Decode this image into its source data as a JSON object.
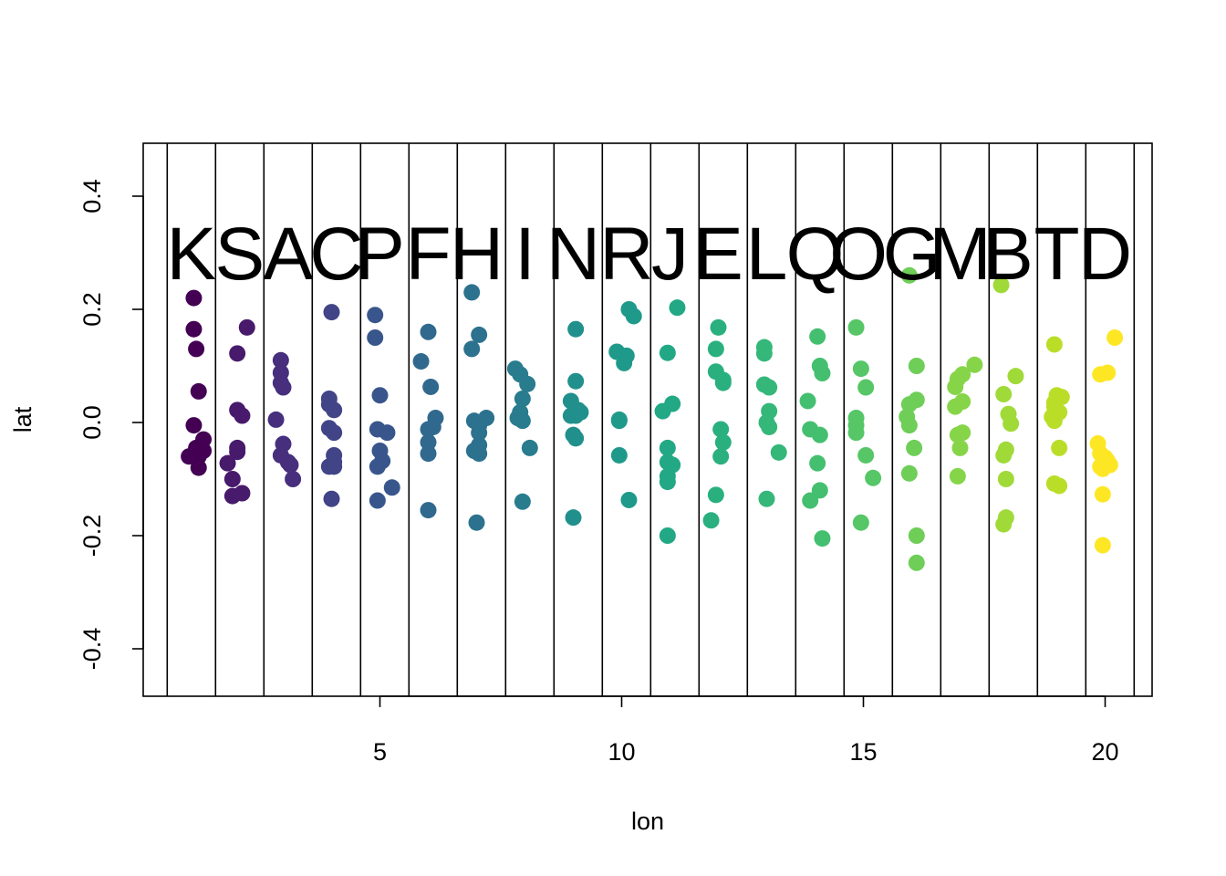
{
  "chart_data": {
    "type": "scatter",
    "xlabel": "lon",
    "ylabel": "lat",
    "xlim": [
      0.2,
      21.0
    ],
    "ylim": [
      -0.48,
      0.48
    ],
    "x_ticks": [
      5,
      10,
      15,
      20
    ],
    "y_ticks": [
      -0.4,
      -0.2,
      0.0,
      0.2,
      0.4
    ],
    "y_tick_labels": [
      "-0.4",
      "-0.2",
      "0.0",
      "0.2",
      "0.4"
    ],
    "vertical_lines": [
      0.6,
      1.6,
      2.6,
      3.6,
      4.6,
      5.6,
      6.6,
      7.6,
      8.6,
      9.6,
      10.6,
      11.6,
      12.6,
      13.6,
      14.6,
      15.6,
      16.6,
      17.6,
      18.6,
      19.6,
      20.6
    ],
    "group_label_y": 0.3,
    "groups": [
      {
        "label": "K",
        "x_center": 1.1,
        "color": "#440154",
        "points": [
          [
            1.15,
            0.22
          ],
          [
            1.15,
            0.165
          ],
          [
            1.2,
            0.13
          ],
          [
            1.25,
            0.055
          ],
          [
            1.15,
            -0.005
          ],
          [
            1.35,
            -0.03
          ],
          [
            1.2,
            -0.045
          ],
          [
            1.35,
            -0.05
          ],
          [
            1.05,
            -0.06
          ],
          [
            1.25,
            -0.06
          ],
          [
            1.25,
            -0.08
          ]
        ]
      },
      {
        "label": "S",
        "x_center": 2.1,
        "color": "#481a6c",
        "points": [
          [
            2.25,
            0.168
          ],
          [
            2.05,
            0.122
          ],
          [
            2.05,
            0.022
          ],
          [
            2.15,
            0.012
          ],
          [
            2.05,
            -0.045
          ],
          [
            2.05,
            -0.052
          ],
          [
            1.85,
            -0.072
          ],
          [
            1.95,
            -0.1
          ],
          [
            2.15,
            -0.125
          ],
          [
            1.95,
            -0.13
          ]
        ]
      },
      {
        "label": "A",
        "x_center": 3.1,
        "color": "#472f7d",
        "points": [
          [
            2.95,
            0.11
          ],
          [
            2.95,
            0.088
          ],
          [
            2.95,
            0.07
          ],
          [
            3.0,
            0.062
          ],
          [
            2.85,
            0.005
          ],
          [
            3.0,
            -0.038
          ],
          [
            2.95,
            -0.058
          ],
          [
            3.1,
            -0.07
          ],
          [
            3.15,
            -0.075
          ],
          [
            3.2,
            -0.1
          ]
        ]
      },
      {
        "label": "C",
        "x_center": 4.1,
        "color": "#414487",
        "points": [
          [
            4.0,
            0.195
          ],
          [
            3.95,
            0.042
          ],
          [
            3.95,
            0.032
          ],
          [
            4.05,
            0.022
          ],
          [
            3.95,
            -0.01
          ],
          [
            4.05,
            -0.018
          ],
          [
            4.05,
            -0.058
          ],
          [
            4.05,
            -0.07
          ],
          [
            3.95,
            -0.078
          ],
          [
            4.05,
            -0.078
          ],
          [
            4.0,
            -0.135
          ]
        ]
      },
      {
        "label": "P",
        "x_center": 5.0,
        "color": "#39568c",
        "points": [
          [
            4.9,
            0.19
          ],
          [
            4.9,
            0.15
          ],
          [
            5.0,
            0.048
          ],
          [
            4.95,
            -0.012
          ],
          [
            5.15,
            -0.018
          ],
          [
            5.0,
            -0.05
          ],
          [
            5.05,
            -0.068
          ],
          [
            4.95,
            -0.078
          ],
          [
            5.25,
            -0.115
          ],
          [
            4.95,
            -0.138
          ]
        ]
      },
      {
        "label": "F",
        "x_center": 6.0,
        "color": "#31688e",
        "points": [
          [
            6.0,
            0.16
          ],
          [
            5.85,
            0.108
          ],
          [
            6.05,
            0.063
          ],
          [
            6.15,
            0.008
          ],
          [
            6.1,
            -0.008
          ],
          [
            6.0,
            -0.012
          ],
          [
            6.0,
            -0.035
          ],
          [
            6.0,
            -0.055
          ],
          [
            6.0,
            -0.155
          ]
        ]
      },
      {
        "label": "H",
        "x_center": 7.0,
        "color": "#2c728e",
        "points": [
          [
            6.9,
            0.23
          ],
          [
            7.05,
            0.155
          ],
          [
            6.9,
            0.13
          ],
          [
            7.2,
            0.008
          ],
          [
            6.95,
            0.003
          ],
          [
            7.05,
            -0.005
          ],
          [
            7.05,
            -0.018
          ],
          [
            7.05,
            -0.04
          ],
          [
            6.95,
            -0.05
          ],
          [
            7.05,
            -0.055
          ],
          [
            7.0,
            -0.177
          ]
        ]
      },
      {
        "label": "I",
        "x_center": 8.0,
        "color": "#287c8e",
        "points": [
          [
            7.8,
            0.095
          ],
          [
            7.9,
            0.085
          ],
          [
            8.05,
            0.068
          ],
          [
            7.95,
            0.042
          ],
          [
            7.9,
            0.018
          ],
          [
            7.85,
            0.008
          ],
          [
            7.95,
            0.003
          ],
          [
            8.1,
            -0.045
          ],
          [
            7.95,
            -0.14
          ]
        ]
      },
      {
        "label": "N",
        "x_center": 9.0,
        "color": "#21908c",
        "points": [
          [
            9.05,
            0.165
          ],
          [
            9.05,
            0.073
          ],
          [
            8.95,
            0.038
          ],
          [
            9.1,
            0.022
          ],
          [
            9.15,
            0.018
          ],
          [
            9.05,
            0.012
          ],
          [
            8.95,
            0.012
          ],
          [
            9.0,
            -0.022
          ],
          [
            9.05,
            -0.028
          ],
          [
            9.0,
            -0.168
          ]
        ]
      },
      {
        "label": "R",
        "x_center": 10.1,
        "color": "#1f9a8a",
        "points": [
          [
            10.15,
            0.2
          ],
          [
            10.25,
            0.188
          ],
          [
            9.9,
            0.125
          ],
          [
            10.1,
            0.118
          ],
          [
            10.05,
            0.105
          ],
          [
            9.95,
            0.005
          ],
          [
            9.95,
            0.003
          ],
          [
            9.95,
            -0.058
          ],
          [
            10.15,
            -0.137
          ]
        ]
      },
      {
        "label": "J",
        "x_center": 11.0,
        "color": "#22a884",
        "points": [
          [
            11.15,
            0.203
          ],
          [
            10.95,
            0.123
          ],
          [
            11.05,
            0.033
          ],
          [
            10.85,
            0.02
          ],
          [
            10.95,
            -0.045
          ],
          [
            10.95,
            -0.07
          ],
          [
            11.05,
            -0.075
          ],
          [
            10.95,
            -0.095
          ],
          [
            10.95,
            -0.105
          ],
          [
            10.95,
            -0.2
          ]
        ]
      },
      {
        "label": "E",
        "x_center": 12.0,
        "color": "#2ab07f",
        "points": [
          [
            12.0,
            0.168
          ],
          [
            11.95,
            0.13
          ],
          [
            11.95,
            0.09
          ],
          [
            12.1,
            0.075
          ],
          [
            12.1,
            0.07
          ],
          [
            12.05,
            -0.012
          ],
          [
            12.1,
            -0.035
          ],
          [
            12.05,
            -0.06
          ],
          [
            11.95,
            -0.128
          ],
          [
            11.85,
            -0.173
          ]
        ]
      },
      {
        "label": "L",
        "x_center": 13.0,
        "color": "#35b779",
        "points": [
          [
            12.95,
            0.133
          ],
          [
            12.95,
            0.122
          ],
          [
            12.95,
            0.067
          ],
          [
            13.05,
            0.062
          ],
          [
            13.05,
            0.02
          ],
          [
            13.0,
            0.0
          ],
          [
            13.05,
            -0.008
          ],
          [
            13.25,
            -0.053
          ],
          [
            13.0,
            -0.135
          ]
        ]
      },
      {
        "label": "Q",
        "x_center": 14.0,
        "color": "#44bf70",
        "points": [
          [
            14.05,
            0.152
          ],
          [
            14.1,
            0.1
          ],
          [
            14.15,
            0.087
          ],
          [
            13.85,
            0.038
          ],
          [
            13.9,
            -0.012
          ],
          [
            14.1,
            -0.022
          ],
          [
            14.05,
            -0.072
          ],
          [
            14.1,
            -0.12
          ],
          [
            13.9,
            -0.138
          ],
          [
            14.15,
            -0.205
          ]
        ]
      },
      {
        "label": "O",
        "x_center": 14.9,
        "color": "#56c667",
        "points": [
          [
            14.85,
            0.168
          ],
          [
            14.95,
            0.095
          ],
          [
            15.05,
            0.062
          ],
          [
            14.85,
            0.008
          ],
          [
            14.85,
            -0.005
          ],
          [
            14.85,
            -0.018
          ],
          [
            15.05,
            -0.058
          ],
          [
            15.2,
            -0.098
          ],
          [
            14.95,
            -0.177
          ]
        ]
      },
      {
        "label": "G",
        "x_center": 16.0,
        "color": "#6ece58",
        "points": [
          [
            15.95,
            0.26
          ],
          [
            16.1,
            0.1
          ],
          [
            16.1,
            0.04
          ],
          [
            15.95,
            0.032
          ],
          [
            15.9,
            0.01
          ],
          [
            15.95,
            -0.005
          ],
          [
            16.05,
            -0.045
          ],
          [
            15.95,
            -0.09
          ],
          [
            16.1,
            -0.2
          ],
          [
            16.1,
            -0.248
          ]
        ]
      },
      {
        "label": "M",
        "x_center": 17.0,
        "color": "#86d549",
        "points": [
          [
            17.3,
            0.102
          ],
          [
            17.05,
            0.085
          ],
          [
            16.95,
            0.077
          ],
          [
            16.9,
            0.063
          ],
          [
            17.05,
            0.037
          ],
          [
            16.9,
            0.028
          ],
          [
            17.05,
            -0.018
          ],
          [
            16.95,
            -0.022
          ],
          [
            17.0,
            -0.045
          ],
          [
            16.95,
            -0.095
          ]
        ]
      },
      {
        "label": "B",
        "x_center": 18.0,
        "color": "#a0da39",
        "points": [
          [
            17.85,
            0.243
          ],
          [
            18.15,
            0.082
          ],
          [
            17.9,
            0.05
          ],
          [
            18.0,
            0.015
          ],
          [
            18.05,
            -0.002
          ],
          [
            17.95,
            -0.048
          ],
          [
            17.9,
            -0.058
          ],
          [
            17.95,
            -0.1
          ],
          [
            17.95,
            -0.168
          ],
          [
            17.9,
            -0.18
          ]
        ]
      },
      {
        "label": "T",
        "x_center": 19.0,
        "color": "#bade28",
        "points": [
          [
            18.95,
            0.138
          ],
          [
            19.0,
            0.048
          ],
          [
            19.1,
            0.045
          ],
          [
            18.95,
            0.035
          ],
          [
            18.95,
            0.028
          ],
          [
            19.05,
            0.018
          ],
          [
            18.9,
            0.01
          ],
          [
            18.95,
            0.003
          ],
          [
            19.05,
            -0.045
          ],
          [
            18.95,
            -0.108
          ],
          [
            19.05,
            -0.112
          ]
        ]
      },
      {
        "label": "D",
        "x_center": 20.0,
        "color": "#fde725",
        "points": [
          [
            20.2,
            0.15
          ],
          [
            20.05,
            0.088
          ],
          [
            19.9,
            0.085
          ],
          [
            19.85,
            -0.037
          ],
          [
            19.9,
            -0.055
          ],
          [
            20.0,
            -0.062
          ],
          [
            20.05,
            -0.068
          ],
          [
            20.1,
            -0.075
          ],
          [
            19.9,
            -0.078
          ],
          [
            19.95,
            -0.082
          ],
          [
            19.95,
            -0.127
          ],
          [
            19.95,
            -0.217
          ]
        ]
      }
    ]
  }
}
